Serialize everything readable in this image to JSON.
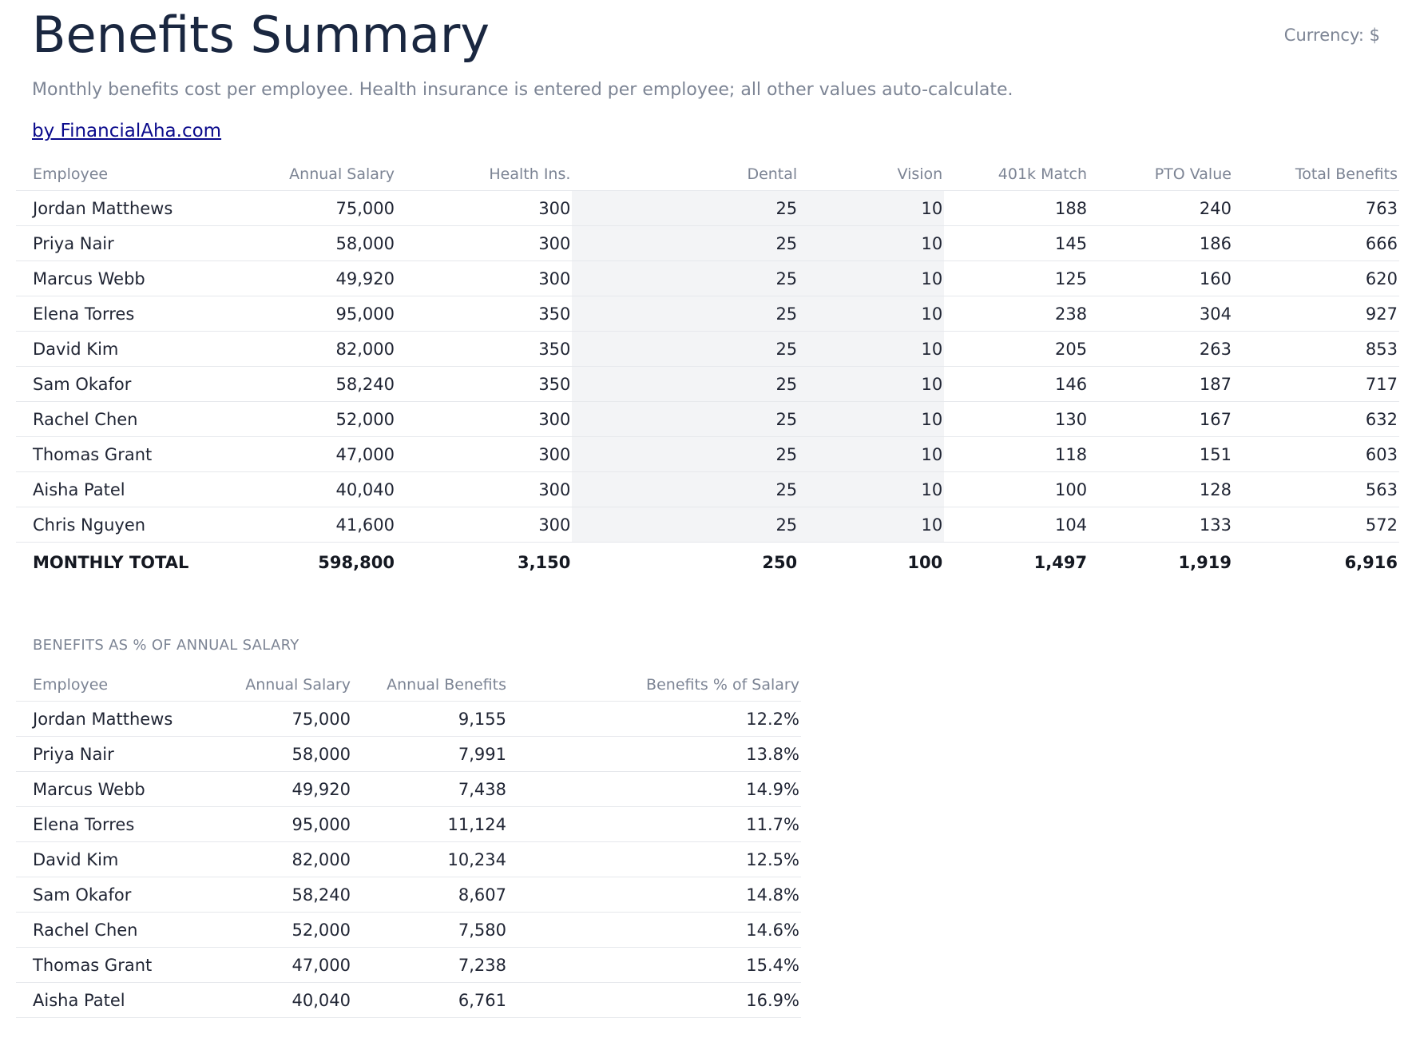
{
  "header": {
    "title": "Benefits Summary",
    "currency": "Currency: $",
    "subtitle": "Monthly benefits cost per employee. Health insurance is entered per employee; all other values auto-calculate.",
    "credit": "by FinancialAha.com"
  },
  "main_table": {
    "columns": [
      "Employee",
      "Annual Salary",
      "Health Ins.",
      "Dental",
      "Vision",
      "401k Match",
      "PTO Value",
      "Total Benefits"
    ],
    "rows": [
      [
        "Jordan Matthews",
        "75,000",
        "300",
        "25",
        "10",
        "188",
        "240",
        "763"
      ],
      [
        "Priya Nair",
        "58,000",
        "300",
        "25",
        "10",
        "145",
        "186",
        "666"
      ],
      [
        "Marcus Webb",
        "49,920",
        "300",
        "25",
        "10",
        "125",
        "160",
        "620"
      ],
      [
        "Elena Torres",
        "95,000",
        "350",
        "25",
        "10",
        "238",
        "304",
        "927"
      ],
      [
        "David Kim",
        "82,000",
        "350",
        "25",
        "10",
        "205",
        "263",
        "853"
      ],
      [
        "Sam Okafor",
        "58,240",
        "350",
        "25",
        "10",
        "146",
        "187",
        "717"
      ],
      [
        "Rachel Chen",
        "52,000",
        "300",
        "25",
        "10",
        "130",
        "167",
        "632"
      ],
      [
        "Thomas Grant",
        "47,000",
        "300",
        "25",
        "10",
        "118",
        "151",
        "603"
      ],
      [
        "Aisha Patel",
        "40,040",
        "300",
        "25",
        "10",
        "100",
        "128",
        "563"
      ],
      [
        "Chris Nguyen",
        "41,600",
        "300",
        "25",
        "10",
        "104",
        "133",
        "572"
      ]
    ],
    "total": [
      "MONTHLY TOTAL",
      "598,800",
      "3,150",
      "250",
      "100",
      "1,497",
      "1,919",
      "6,916"
    ]
  },
  "pct_section": {
    "label": "BENEFITS AS % OF ANNUAL SALARY",
    "columns": [
      "Employee",
      "Annual Salary",
      "Annual Benefits",
      "Benefits % of Salary"
    ],
    "rows": [
      [
        "Jordan Matthews",
        "75,000",
        "9,155",
        "12.2%"
      ],
      [
        "Priya Nair",
        "58,000",
        "7,991",
        "13.8%"
      ],
      [
        "Marcus Webb",
        "49,920",
        "7,438",
        "14.9%"
      ],
      [
        "Elena Torres",
        "95,000",
        "11,124",
        "11.7%"
      ],
      [
        "David Kim",
        "82,000",
        "10,234",
        "12.5%"
      ],
      [
        "Sam Okafor",
        "58,240",
        "8,607",
        "14.8%"
      ],
      [
        "Rachel Chen",
        "52,000",
        "7,580",
        "14.6%"
      ],
      [
        "Thomas Grant",
        "47,000",
        "7,238",
        "15.4%"
      ],
      [
        "Aisha Patel",
        "40,040",
        "6,761",
        "16.9%"
      ]
    ]
  },
  "colors": {
    "title": "#1a2740",
    "muted": "#7c8494",
    "link": "#0a0a8c",
    "shaded_column": "#f3f4f6",
    "row_border": "#e6e8ec"
  }
}
